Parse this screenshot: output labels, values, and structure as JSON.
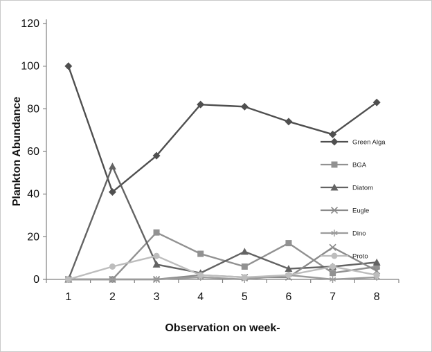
{
  "chart_data": {
    "type": "line",
    "title": "",
    "xlabel": "Observation on week-",
    "ylabel": "Plankton Abundance",
    "x": [
      1,
      2,
      3,
      4,
      5,
      6,
      7,
      8
    ],
    "ylim": [
      0,
      120
    ],
    "yticks": [
      0,
      20,
      40,
      60,
      80,
      100,
      120
    ],
    "grid": false,
    "legend_position": "right-inside",
    "axis_color": "#7f7f7f",
    "text_color": "#111111",
    "series": [
      {
        "name": "Green Alga",
        "marker": "diamond",
        "color": "#4f4f4f",
        "values": [
          100,
          41,
          58,
          82,
          81,
          74,
          68,
          83
        ]
      },
      {
        "name": "BGA",
        "marker": "square",
        "color": "#919191",
        "values": [
          0,
          0,
          22,
          12,
          6,
          17,
          3,
          6
        ]
      },
      {
        "name": "Diatom",
        "marker": "triangle",
        "color": "#636363",
        "values": [
          0,
          53,
          7,
          3,
          13,
          5,
          6,
          8
        ]
      },
      {
        "name": "Eugle",
        "marker": "x",
        "color": "#8a8a8a",
        "values": [
          0,
          0,
          0,
          2,
          1,
          1,
          15,
          4
        ]
      },
      {
        "name": "Dino",
        "marker": "asterisk",
        "color": "#9b9b9b",
        "values": [
          0,
          0,
          0,
          1,
          0,
          2,
          0,
          1
        ]
      },
      {
        "name": "Proto",
        "marker": "circle",
        "color": "#bdbdbd",
        "values": [
          0,
          6,
          11,
          2,
          1,
          2,
          6,
          2
        ]
      }
    ]
  }
}
